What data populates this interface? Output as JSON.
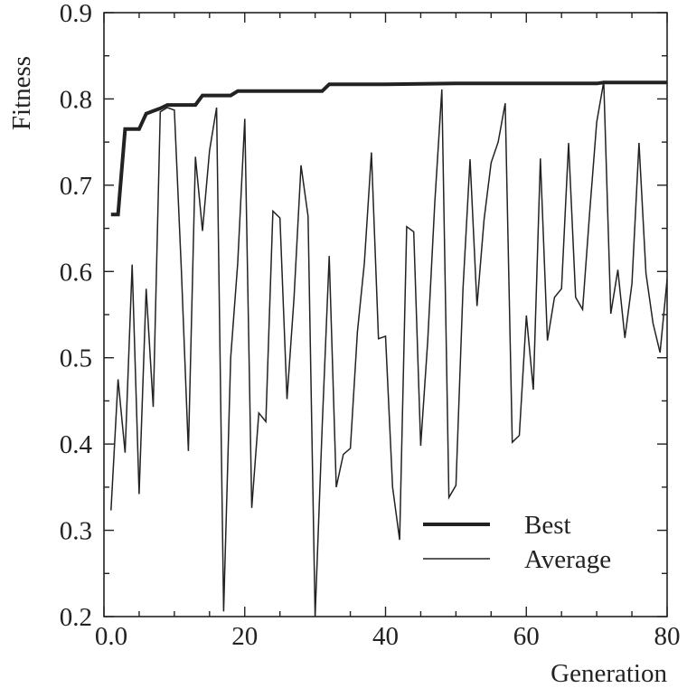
{
  "chart_data": {
    "type": "line",
    "xlabel": "Generation",
    "ylabel": "Fitness",
    "xlim": [
      0,
      80
    ],
    "ylim": [
      0.2,
      0.9
    ],
    "xticks": [
      "0.0",
      "20",
      "40",
      "60",
      "80"
    ],
    "xtick_values": [
      0,
      20,
      40,
      60,
      80
    ],
    "yticks": [
      "0.2",
      "0.3",
      "0.4",
      "0.5",
      "0.6",
      "0.7",
      "0.8",
      "0.9"
    ],
    "ytick_values": [
      0.2,
      0.3,
      0.4,
      0.5,
      0.6,
      0.7,
      0.8,
      0.9
    ],
    "grid": false,
    "legend_position": "lower-right",
    "colors": {
      "line": "#222222",
      "axis": "#222222"
    },
    "series": [
      {
        "name": "Best",
        "style": "thick",
        "x": [
          1,
          2,
          3,
          4,
          5,
          6,
          7,
          8,
          9,
          10,
          11,
          12,
          13,
          14,
          15,
          16,
          17,
          18,
          19,
          20,
          25,
          30,
          31,
          32,
          35,
          40,
          50,
          60,
          70,
          71,
          72,
          80
        ],
        "y": [
          0.666,
          0.666,
          0.765,
          0.765,
          0.765,
          0.783,
          0.786,
          0.789,
          0.793,
          0.793,
          0.793,
          0.793,
          0.793,
          0.804,
          0.804,
          0.804,
          0.804,
          0.804,
          0.809,
          0.809,
          0.809,
          0.809,
          0.809,
          0.817,
          0.817,
          0.817,
          0.818,
          0.818,
          0.818,
          0.819,
          0.819,
          0.819
        ]
      },
      {
        "name": "Average",
        "style": "thin",
        "x": [
          1,
          2,
          3,
          4,
          5,
          6,
          7,
          8,
          9,
          10,
          11,
          12,
          13,
          14,
          15,
          16,
          17,
          18,
          19,
          20,
          21,
          22,
          23,
          24,
          25,
          26,
          27,
          28,
          29,
          30,
          31,
          32,
          33,
          34,
          35,
          36,
          37,
          38,
          39,
          40,
          41,
          42,
          43,
          44,
          45,
          46,
          47,
          48,
          49,
          50,
          51,
          52,
          53,
          54,
          55,
          56,
          57,
          58,
          59,
          60,
          61,
          62,
          63,
          64,
          65,
          66,
          67,
          68,
          69,
          70,
          71,
          72,
          73,
          74,
          75,
          76,
          77,
          78,
          79,
          80
        ],
        "y": [
          0.323,
          0.475,
          0.39,
          0.608,
          0.342,
          0.58,
          0.443,
          0.785,
          0.79,
          0.787,
          0.6,
          0.392,
          0.733,
          0.647,
          0.74,
          0.79,
          0.206,
          0.5,
          0.61,
          0.777,
          0.326,
          0.436,
          0.426,
          0.67,
          0.662,
          0.452,
          0.57,
          0.723,
          0.664,
          0.2,
          0.42,
          0.618,
          0.35,
          0.388,
          0.395,
          0.53,
          0.61,
          0.738,
          0.522,
          0.525,
          0.35,
          0.289,
          0.652,
          0.646,
          0.398,
          0.52,
          0.68,
          0.811,
          0.338,
          0.352,
          0.58,
          0.73,
          0.56,
          0.66,
          0.726,
          0.75,
          0.795,
          0.402,
          0.41,
          0.549,
          0.463,
          0.731,
          0.52,
          0.57,
          0.58,
          0.749,
          0.57,
          0.556,
          0.668,
          0.773,
          0.82,
          0.551,
          0.602,
          0.523,
          0.586,
          0.749,
          0.598,
          0.54,
          0.506,
          0.591
        ]
      }
    ]
  }
}
